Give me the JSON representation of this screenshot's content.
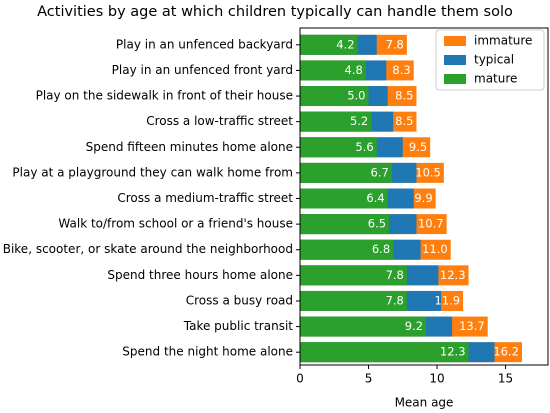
{
  "chart_data": {
    "type": "bar",
    "orientation": "horizontal",
    "overlap": true,
    "title": "Activities by age at which children typically can handle them solo",
    "xlabel": "Mean age",
    "categories": [
      "Play in an unfenced backyard",
      "Play in an unfenced front yard",
      "Play on the sidewalk in front of their house",
      "Cross a low-traffic street",
      "Spend fifteen minutes home alone",
      "Play at a playground they can walk home from",
      "Cross a medium-traffic street",
      "Walk to/from school or a friend's house",
      "Bike, scooter, or skate around the neighborhood",
      "Spend three hours home alone",
      "Cross a busy road",
      "Take public transit",
      "Spend the night home alone"
    ],
    "series": [
      {
        "name": "immature",
        "color": "#ff7f0e",
        "values": [
          7.8,
          8.3,
          8.5,
          8.5,
          9.5,
          10.5,
          9.9,
          10.7,
          11.0,
          12.3,
          11.9,
          13.7,
          16.2
        ],
        "labeled": true
      },
      {
        "name": "typical",
        "color": "#1f77b4",
        "values": [
          5.6,
          6.3,
          6.4,
          6.8,
          7.5,
          8.5,
          8.3,
          8.5,
          8.8,
          10.1,
          10.3,
          11.1,
          14.2
        ],
        "labeled": false
      },
      {
        "name": "mature",
        "color": "#2ca02c",
        "values": [
          4.2,
          4.8,
          5.0,
          5.2,
          5.6,
          6.7,
          6.4,
          6.5,
          6.8,
          7.8,
          7.8,
          9.2,
          12.3
        ],
        "labeled": true
      }
    ],
    "xlim": [
      0,
      18.1
    ],
    "xticks": [
      0,
      5,
      10,
      15
    ],
    "legend": "upper right"
  }
}
